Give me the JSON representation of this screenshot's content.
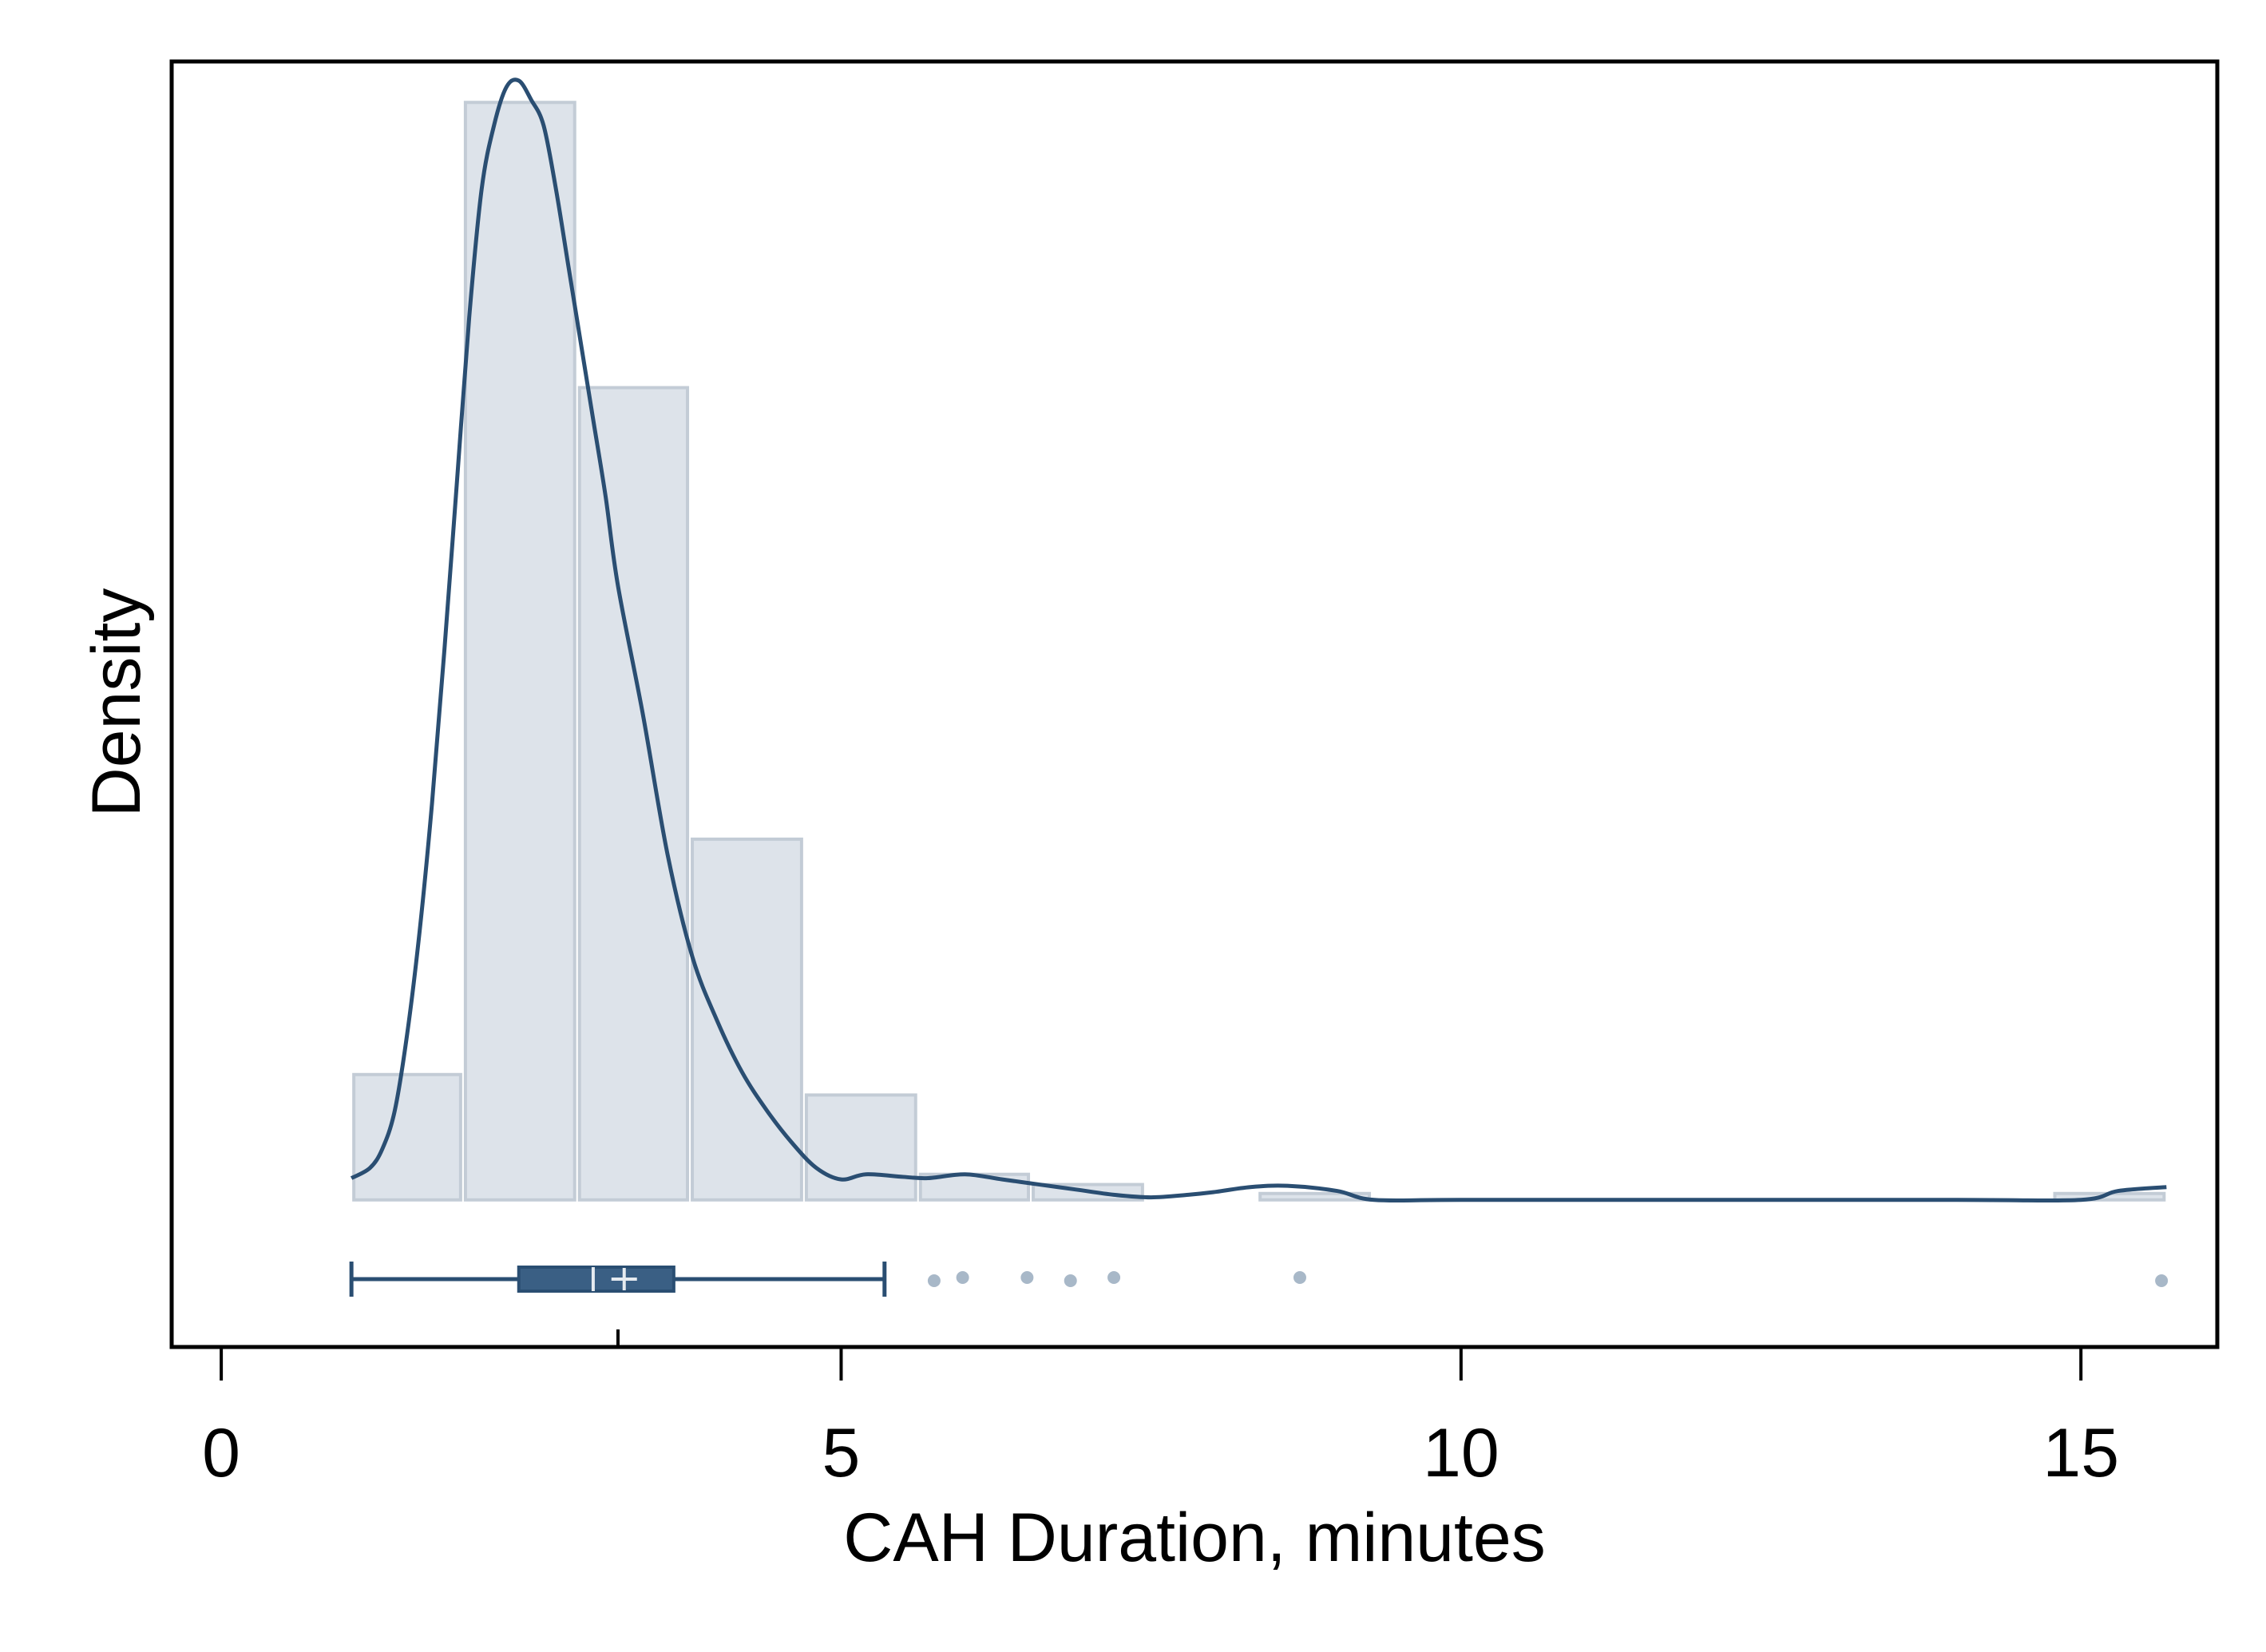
{
  "chart_data": {
    "type": "histogram",
    "xlabel": "CAH Duration, minutes",
    "ylabel": "Density",
    "xlim": [
      -0.4,
      16.1
    ],
    "ylim": [
      -0.115,
      0.89
    ],
    "xticks": [
      0,
      5,
      10,
      15
    ],
    "xtick_labels": [
      "0",
      "5",
      "10",
      "15"
    ],
    "grid": false,
    "colors": {
      "bar_fill": "#dde3ea",
      "bar_stroke": "#c3ccd6",
      "kde_line": "#2a4e72",
      "box_fill": "#3a5f84",
      "box_line": "#2a4e72",
      "outlier": "#a8b8c8",
      "frame": "#000000"
    },
    "histogram": {
      "bins": [
        {
          "start": 1.05,
          "end": 1.95,
          "density": 0.098
        },
        {
          "start": 1.95,
          "end": 2.87,
          "density": 0.858
        },
        {
          "start": 2.87,
          "end": 3.78,
          "density": 0.635
        },
        {
          "start": 3.78,
          "end": 4.7,
          "density": 0.282
        },
        {
          "start": 4.7,
          "end": 5.62,
          "density": 0.082
        },
        {
          "start": 5.62,
          "end": 6.53,
          "density": 0.02
        },
        {
          "start": 6.53,
          "end": 7.45,
          "density": 0.012
        },
        {
          "start": 8.36,
          "end": 9.28,
          "density": 0.005
        },
        {
          "start": 14.77,
          "end": 15.69,
          "density": 0.005
        }
      ]
    },
    "kde": {
      "x": [
        1.05,
        1.2,
        1.3,
        1.4,
        1.5,
        1.6,
        1.7,
        1.8,
        1.9,
        2.0,
        2.1,
        2.2,
        2.3,
        2.4,
        2.5,
        2.6,
        2.7,
        2.8,
        2.9,
        3.0,
        3.1,
        3.2,
        3.4,
        3.6,
        3.8,
        4.0,
        4.2,
        4.4,
        4.6,
        4.8,
        5.0,
        5.2,
        5.5,
        5.7,
        6.0,
        6.3,
        6.6,
        6.9,
        7.2,
        7.5,
        7.8,
        8.0,
        8.3,
        8.6,
        9.0,
        9.3,
        10.0,
        12.0,
        14.0,
        15.0,
        15.3,
        15.69
      ],
      "y": [
        0.017,
        0.025,
        0.04,
        0.07,
        0.13,
        0.21,
        0.31,
        0.43,
        0.56,
        0.69,
        0.79,
        0.84,
        0.87,
        0.875,
        0.86,
        0.84,
        0.79,
        0.73,
        0.67,
        0.61,
        0.55,
        0.48,
        0.38,
        0.27,
        0.19,
        0.14,
        0.1,
        0.07,
        0.045,
        0.025,
        0.016,
        0.02,
        0.018,
        0.017,
        0.02,
        0.016,
        0.012,
        0.008,
        0.004,
        0.002,
        0.004,
        0.006,
        0.01,
        0.011,
        0.007,
        0.0,
        0.0,
        0.0,
        0.0,
        0.0,
        0.007,
        0.01
      ]
    },
    "boxplot": {
      "whisker_low": 1.05,
      "q1": 2.4,
      "median": 3.0,
      "mean": 3.25,
      "q3": 3.65,
      "whisker_high": 5.35,
      "outliers": [
        5.75,
        5.98,
        6.5,
        6.85,
        7.2,
        8.7,
        15.65
      ]
    },
    "extra_axis_tick": 3.2
  }
}
